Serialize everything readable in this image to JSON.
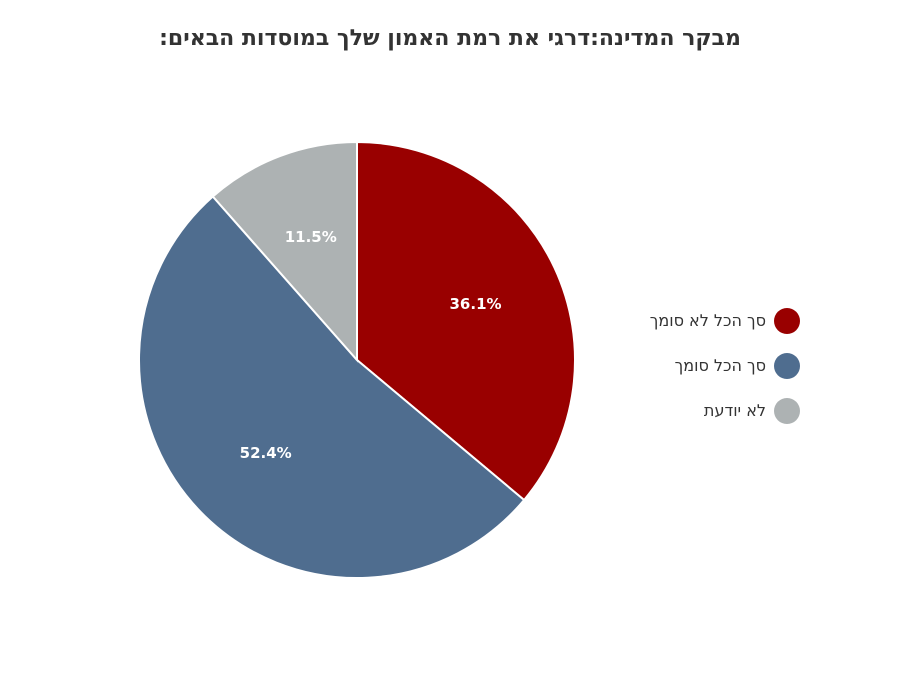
{
  "chart_data": {
    "type": "pie",
    "title": "מבקר המדינה:דרגי את רמת האמון שלך במוסדות הבאים:",
    "categories": [
      "סך הכל לא סומך",
      "סך הכל סומך",
      "לא יודעת"
    ],
    "values": [
      36.1,
      52.4,
      11.5
    ],
    "labels": [
      "36.1%",
      "52.4%",
      "11.5%"
    ],
    "colors": [
      "#990000",
      "#4f6d8f",
      "#adb2b3"
    ],
    "legend_position": "right"
  }
}
